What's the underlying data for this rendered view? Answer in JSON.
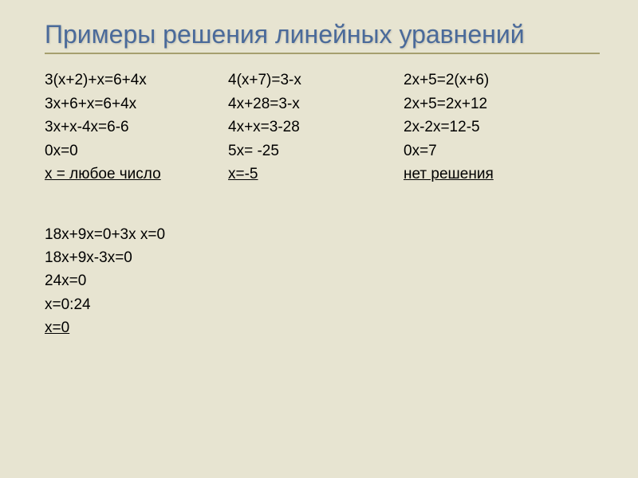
{
  "colors": {
    "background": "#e7e4d1",
    "title": "#4a6a9a",
    "rule": "#a69f6f",
    "text": "#000000"
  },
  "typography": {
    "title_fontsize": 32,
    "body_fontsize": 19,
    "font_family": "Arial"
  },
  "title": "Примеры решения линейных уравнений",
  "examples": [
    {
      "lines": [
        "3(х+2)+х=6+4х",
        "3х+6+х=6+4х",
        "3х+х-4х=6-6",
        "0х=0"
      ],
      "result": "х = любое число"
    },
    {
      "lines": [
        "4(х+7)=3-х",
        "4х+28=3-х",
        "4х+х=3-28",
        "5х= -25"
      ],
      "result": "х=-5"
    },
    {
      "lines": [
        "2х+5=2(х+6)",
        "2х+5=2х+12",
        "2х-2х=12-5",
        "0х=7"
      ],
      "result": "нет решения"
    }
  ],
  "extra": {
    "lines": [
      "18х+9х=0+3х х=0",
      " 18х+9х-3х=0",
      " 24х=0",
      " х=0:24"
    ],
    "result": " х=0"
  }
}
